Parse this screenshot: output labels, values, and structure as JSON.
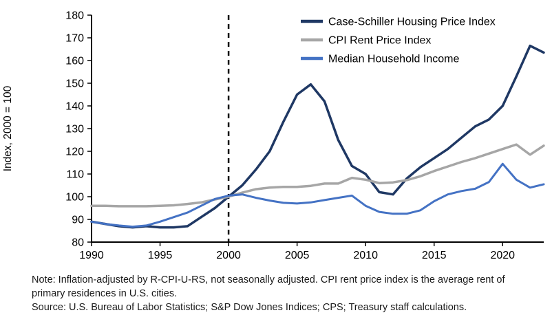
{
  "figure": {
    "note": "Note: Inflation-adjusted by R-CPI-U-RS, not seasonally adjusted. CPI rent price index is the average rent of primary residences in U.S. cities.",
    "source": "Source: U.S. Bureau of Labor Statistics; S&P Dow Jones Indices; CPS; Treasury staff calculations."
  },
  "chart_data": {
    "type": "line",
    "title": "",
    "xlabel": "",
    "ylabel": "Index, 2000 = 100",
    "ylim": [
      80,
      180
    ],
    "ytick_step": 10,
    "xlim": [
      1990,
      2023
    ],
    "xticks": [
      1990,
      1995,
      2000,
      2005,
      2010,
      2015,
      2020
    ],
    "grid": false,
    "legend_position": "top-right-inside",
    "vline": {
      "x": 2000,
      "style": "dashed",
      "color": "#000000"
    },
    "axis_color": "#000000",
    "x": [
      1990,
      1991,
      1992,
      1993,
      1994,
      1995,
      1996,
      1997,
      1998,
      1999,
      2000,
      2001,
      2002,
      2003,
      2004,
      2005,
      2006,
      2007,
      2008,
      2009,
      2010,
      2011,
      2012,
      2013,
      2014,
      2015,
      2016,
      2017,
      2018,
      2019,
      2020,
      2021,
      2022,
      2023
    ],
    "series": [
      {
        "name": "Case-Schiller Housing Price Index",
        "color": "#1f3864",
        "width": 3.5,
        "values": [
          89,
          88,
          87,
          86.5,
          87,
          86.5,
          86.5,
          87,
          91,
          95,
          100,
          105,
          112,
          120,
          133,
          145,
          149.5,
          142,
          125,
          113.5,
          110,
          102,
          101,
          108,
          113,
          117,
          121,
          126,
          131,
          134,
          140,
          153,
          166.5,
          163.5
        ]
      },
      {
        "name": "CPI Rent Price Index",
        "color": "#a6a6a6",
        "width": 3.5,
        "values": [
          96,
          96,
          95.8,
          95.8,
          95.8,
          96,
          96.2,
          96.8,
          97.5,
          98.8,
          100,
          101.8,
          103.3,
          104,
          104.3,
          104.3,
          104.8,
          105.8,
          105.8,
          108.3,
          107.5,
          106,
          106.3,
          107.3,
          109,
          111.3,
          113.3,
          115.3,
          117,
          119,
          121,
          123,
          118.5,
          122.5
        ]
      },
      {
        "name": "Median Household Income",
        "color": "#4472c4",
        "width": 3,
        "values": [
          89,
          88,
          87.3,
          86.8,
          87.3,
          89,
          91,
          93,
          96,
          99,
          100.5,
          101,
          99.5,
          98.3,
          97.3,
          97,
          97.5,
          98.5,
          99.5,
          100.5,
          96,
          93.3,
          92.5,
          92.5,
          94,
          98,
          101,
          102.5,
          103.5,
          106.5,
          114.5,
          107.5,
          104,
          105.5
        ]
      }
    ]
  }
}
